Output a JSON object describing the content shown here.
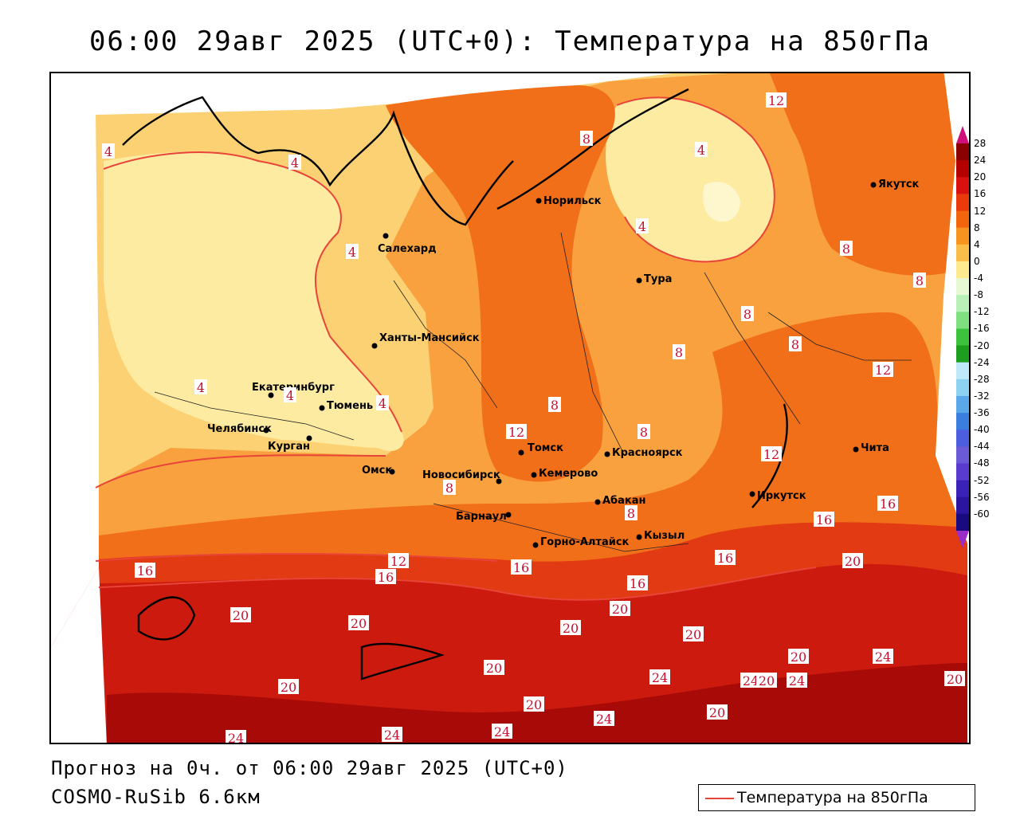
{
  "title": "06:00 29авг 2025 (UTC+0): Температура на 850гПа",
  "footer": {
    "forecast": "Прогноз на 0ч. от 06:00 29авг 2025 (UTC+0)",
    "model": "COSMO-RuSib 6.6км"
  },
  "legend": {
    "label": "Температура на 850гПа",
    "color": "#e8443a"
  },
  "colorbar": {
    "labels": [
      "28",
      "24",
      "20",
      "16",
      "12",
      "8",
      "4",
      "0",
      "-4",
      "-8",
      "-12",
      "-16",
      "-20",
      "-24",
      "-28",
      "-32",
      "-36",
      "-40",
      "-44",
      "-48",
      "-52",
      "-56",
      "-60"
    ],
    "colors": [
      "#8b0000",
      "#b50000",
      "#d81010",
      "#ea3a0c",
      "#f2650c",
      "#f7931e",
      "#fbbd4a",
      "#fde98e",
      "#e6f9d4",
      "#b8f0b8",
      "#7ee07e",
      "#3cc23c",
      "#1e9e1e",
      "#bfe8f8",
      "#8ed2f2",
      "#5aa8ea",
      "#3a7ee0",
      "#4c5de0",
      "#6a5ad8",
      "#5a3bd0",
      "#3a22b8",
      "#2a14a0",
      "#1a0a80"
    ]
  },
  "cities": [
    {
      "name": "Норильск"
    },
    {
      "name": "Якутск"
    },
    {
      "name": "Салехард"
    },
    {
      "name": "Тура"
    },
    {
      "name": "Ханты-Мансийск"
    },
    {
      "name": "Екатеринбург"
    },
    {
      "name": "Тюмень"
    },
    {
      "name": "Челябинск"
    },
    {
      "name": "Курган"
    },
    {
      "name": "Омск"
    },
    {
      "name": "Томск"
    },
    {
      "name": "Красноярск"
    },
    {
      "name": "Новосибирск"
    },
    {
      "name": "Кемерово"
    },
    {
      "name": "Абакан"
    },
    {
      "name": "Иркутск"
    },
    {
      "name": "Чита"
    },
    {
      "name": "Барнаул"
    },
    {
      "name": "Горно-Алтайск"
    },
    {
      "name": "Кызыл"
    }
  ],
  "contour_labels": [
    "4",
    "4",
    "8",
    "12",
    "4",
    "4",
    "4",
    "4",
    "4",
    "4",
    "8",
    "8",
    "8",
    "8",
    "8",
    "12",
    "8",
    "12",
    "8",
    "8",
    "8",
    "12",
    "16",
    "12",
    "16",
    "16",
    "16",
    "16",
    "16",
    "16",
    "20",
    "20",
    "20",
    "20",
    "20",
    "20",
    "20",
    "20",
    "20",
    "20",
    "24",
    "24",
    "24",
    "24",
    "24",
    "24",
    "24",
    "20",
    "20",
    "20",
    "24"
  ]
}
